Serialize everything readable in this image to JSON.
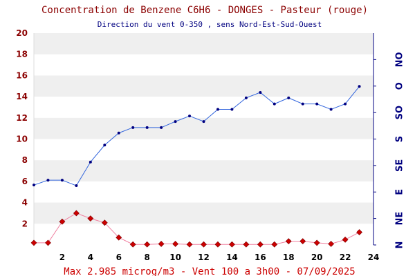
{
  "title": "Concentration de Benzene C6H6  -   DONGES - Pasteur (rouge)",
  "subtitle": "Direction du vent 0-350 , sens Nord-Est-Sud-Ouest",
  "footer": "Max 2.985 microg/m3 - Vent 100  a 3h00 - 07/09/2025",
  "colors": {
    "benzene": "#cc0000",
    "wind": "#3366dd",
    "wind_marker": "#000080",
    "band": "#efefef",
    "left_axis_text": "#8b0000",
    "right_axis": "#000080"
  },
  "chart_data": {
    "type": "line",
    "x": [
      0,
      1,
      2,
      3,
      4,
      5,
      6,
      7,
      8,
      9,
      10,
      11,
      12,
      13,
      14,
      15,
      16,
      17,
      18,
      19,
      20,
      21,
      22,
      23
    ],
    "xlim": [
      0,
      24
    ],
    "ylim": [
      0,
      20
    ],
    "x_tick_labels": [
      "2",
      "4",
      "6",
      "8",
      "10",
      "12",
      "14",
      "16",
      "18",
      "20",
      "22",
      "24"
    ],
    "y_tick_labels": [
      "2",
      "4",
      "6",
      "8",
      "10",
      "12",
      "14",
      "16",
      "18",
      "20"
    ],
    "right_axis": {
      "range": [
        0,
        350
      ],
      "tick_labels": [
        "N",
        "NE",
        "E",
        "SE",
        "S",
        "SO",
        "O",
        "NO"
      ]
    },
    "grid": "horizontal bands",
    "series": [
      {
        "axis": "left",
        "marker": "diamond",
        "values": [
          0.2,
          0.2,
          2.2,
          3.0,
          2.5,
          2.1,
          0.7,
          0.05,
          0.05,
          0.1,
          0.1,
          0.05,
          0.05,
          0.05,
          0.05,
          0.05,
          0.05,
          0.05,
          0.35,
          0.35,
          0.2,
          0.1,
          0.5,
          1.2
        ]
      },
      {
        "axis": "right",
        "marker": "dot",
        "values": [
          99,
          107,
          107,
          98,
          137,
          165,
          185,
          194,
          194,
          194,
          204,
          213,
          204,
          224,
          224,
          243,
          252,
          233,
          243,
          233,
          233,
          224,
          233,
          262
        ]
      }
    ]
  }
}
